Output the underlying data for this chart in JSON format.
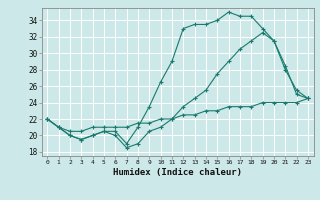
{
  "title": "",
  "xlabel": "Humidex (Indice chaleur)",
  "bg_color": "#cce8e8",
  "grid_color": "#ffffff",
  "line_color": "#1a7a6e",
  "xlim": [
    -0.5,
    23.5
  ],
  "ylim": [
    17.5,
    35.5
  ],
  "yticks": [
    18,
    20,
    22,
    24,
    26,
    28,
    30,
    32,
    34
  ],
  "xticks": [
    0,
    1,
    2,
    3,
    4,
    5,
    6,
    7,
    8,
    9,
    10,
    11,
    12,
    13,
    14,
    15,
    16,
    17,
    18,
    19,
    20,
    21,
    22,
    23
  ],
  "line1": [
    22.0,
    21.0,
    20.0,
    19.5,
    20.0,
    20.5,
    20.5,
    19.0,
    21.0,
    23.5,
    26.5,
    29.0,
    33.0,
    33.5,
    33.5,
    34.0,
    35.0,
    34.5,
    34.5,
    33.0,
    31.5,
    28.5,
    25.0,
    24.5
  ],
  "line2": [
    22.0,
    21.0,
    20.0,
    19.5,
    20.0,
    20.5,
    20.0,
    18.5,
    19.0,
    20.5,
    21.0,
    22.0,
    23.5,
    24.5,
    25.5,
    27.5,
    29.0,
    30.5,
    31.5,
    32.5,
    31.5,
    28.0,
    25.5,
    24.5
  ],
  "line3": [
    22.0,
    21.0,
    20.5,
    20.5,
    21.0,
    21.0,
    21.0,
    21.0,
    21.5,
    21.5,
    22.0,
    22.0,
    22.5,
    22.5,
    23.0,
    23.0,
    23.5,
    23.5,
    23.5,
    24.0,
    24.0,
    24.0,
    24.0,
    24.5
  ]
}
